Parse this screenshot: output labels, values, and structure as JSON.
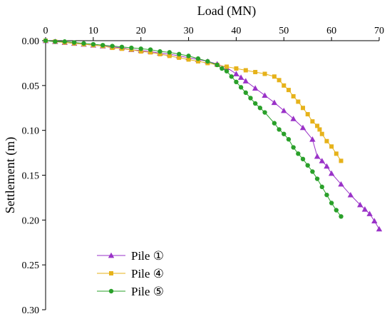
{
  "chart_data": {
    "type": "scatter",
    "xlabel": "Load (MN)",
    "ylabel": "Settlement (m)",
    "xlim": [
      0,
      70
    ],
    "ylim": [
      0,
      0.3
    ],
    "x_axis_position": "top",
    "y_axis_inverted": true,
    "xticks": [
      0,
      10,
      20,
      30,
      40,
      50,
      60,
      70
    ],
    "yticks": [
      0.0,
      0.05,
      0.1,
      0.15,
      0.2,
      0.25,
      0.3
    ],
    "xtick_labels": [
      "0",
      "10",
      "20",
      "30",
      "40",
      "50",
      "60",
      "70"
    ],
    "ytick_labels": [
      "0.00",
      "0.05",
      "0.10",
      "0.15",
      "0.20",
      "0.25",
      "0.30"
    ],
    "grid": false,
    "legend_position": "bottom-left",
    "series": [
      {
        "name": "Pile ①",
        "color": "#9a32c8",
        "marker": "triangle",
        "points": [
          [
            0,
            0
          ],
          [
            2,
            0.001
          ],
          [
            4,
            0.002
          ],
          [
            6,
            0.003
          ],
          [
            8,
            0.004
          ],
          [
            10,
            0.005
          ],
          [
            12,
            0.006
          ],
          [
            14,
            0.007
          ],
          [
            16,
            0.008
          ],
          [
            18,
            0.01
          ],
          [
            20,
            0.011
          ],
          [
            22,
            0.012
          ],
          [
            24,
            0.014
          ],
          [
            26,
            0.015
          ],
          [
            28,
            0.017
          ],
          [
            30,
            0.019
          ],
          [
            32,
            0.021
          ],
          [
            34,
            0.023
          ],
          [
            36,
            0.026
          ],
          [
            38,
            0.03
          ],
          [
            40,
            0.037
          ],
          [
            41,
            0.041
          ],
          [
            42,
            0.045
          ],
          [
            44,
            0.053
          ],
          [
            46,
            0.061
          ],
          [
            48,
            0.069
          ],
          [
            50,
            0.078
          ],
          [
            52,
            0.087
          ],
          [
            54,
            0.097
          ],
          [
            56,
            0.11
          ],
          [
            57,
            0.129
          ],
          [
            58,
            0.134
          ],
          [
            59,
            0.14
          ],
          [
            60,
            0.148
          ],
          [
            62,
            0.16
          ],
          [
            64,
            0.172
          ],
          [
            66,
            0.183
          ],
          [
            67,
            0.188
          ],
          [
            68,
            0.193
          ],
          [
            69,
            0.201
          ],
          [
            70,
            0.21
          ]
        ]
      },
      {
        "name": "Pile ④",
        "color": "#e6b21a",
        "marker": "square",
        "points": [
          [
            0,
            0
          ],
          [
            2,
            0.001
          ],
          [
            4,
            0.002
          ],
          [
            6,
            0.003
          ],
          [
            8,
            0.004
          ],
          [
            10,
            0.005
          ],
          [
            12,
            0.006
          ],
          [
            14,
            0.008
          ],
          [
            16,
            0.009
          ],
          [
            18,
            0.01
          ],
          [
            20,
            0.012
          ],
          [
            22,
            0.013
          ],
          [
            24,
            0.015
          ],
          [
            26,
            0.017
          ],
          [
            28,
            0.019
          ],
          [
            30,
            0.021
          ],
          [
            32,
            0.023
          ],
          [
            34,
            0.025
          ],
          [
            36,
            0.027
          ],
          [
            38,
            0.029
          ],
          [
            40,
            0.031
          ],
          [
            42,
            0.033
          ],
          [
            44,
            0.035
          ],
          [
            46,
            0.037
          ],
          [
            48,
            0.04
          ],
          [
            49,
            0.044
          ],
          [
            50,
            0.05
          ],
          [
            51,
            0.055
          ],
          [
            52,
            0.062
          ],
          [
            53,
            0.068
          ],
          [
            54,
            0.075
          ],
          [
            55,
            0.082
          ],
          [
            56,
            0.09
          ],
          [
            57,
            0.095
          ],
          [
            57.5,
            0.099
          ],
          [
            58,
            0.104
          ],
          [
            59,
            0.112
          ],
          [
            60,
            0.118
          ],
          [
            61,
            0.126
          ],
          [
            62,
            0.134
          ]
        ]
      },
      {
        "name": "Pile ⑤",
        "color": "#2aa02a",
        "marker": "circle",
        "points": [
          [
            0,
            0
          ],
          [
            2,
            0.001
          ],
          [
            4,
            0.001
          ],
          [
            6,
            0.002
          ],
          [
            8,
            0.003
          ],
          [
            10,
            0.004
          ],
          [
            12,
            0.005
          ],
          [
            14,
            0.006
          ],
          [
            16,
            0.007
          ],
          [
            18,
            0.008
          ],
          [
            20,
            0.009
          ],
          [
            22,
            0.01
          ],
          [
            24,
            0.012
          ],
          [
            26,
            0.013
          ],
          [
            28,
            0.015
          ],
          [
            30,
            0.017
          ],
          [
            32,
            0.02
          ],
          [
            34,
            0.023
          ],
          [
            36,
            0.027
          ],
          [
            37,
            0.031
          ],
          [
            38,
            0.034
          ],
          [
            39,
            0.04
          ],
          [
            40,
            0.046
          ],
          [
            41,
            0.052
          ],
          [
            42,
            0.058
          ],
          [
            43,
            0.064
          ],
          [
            44,
            0.07
          ],
          [
            45,
            0.075
          ],
          [
            46,
            0.08
          ],
          [
            48,
            0.092
          ],
          [
            49,
            0.099
          ],
          [
            50,
            0.104
          ],
          [
            51,
            0.11
          ],
          [
            52,
            0.119
          ],
          [
            53,
            0.126
          ],
          [
            54,
            0.132
          ],
          [
            55,
            0.139
          ],
          [
            56,
            0.146
          ],
          [
            57,
            0.154
          ],
          [
            58,
            0.163
          ],
          [
            59,
            0.172
          ],
          [
            60,
            0.181
          ],
          [
            61,
            0.189
          ],
          [
            62,
            0.196
          ]
        ]
      }
    ]
  }
}
